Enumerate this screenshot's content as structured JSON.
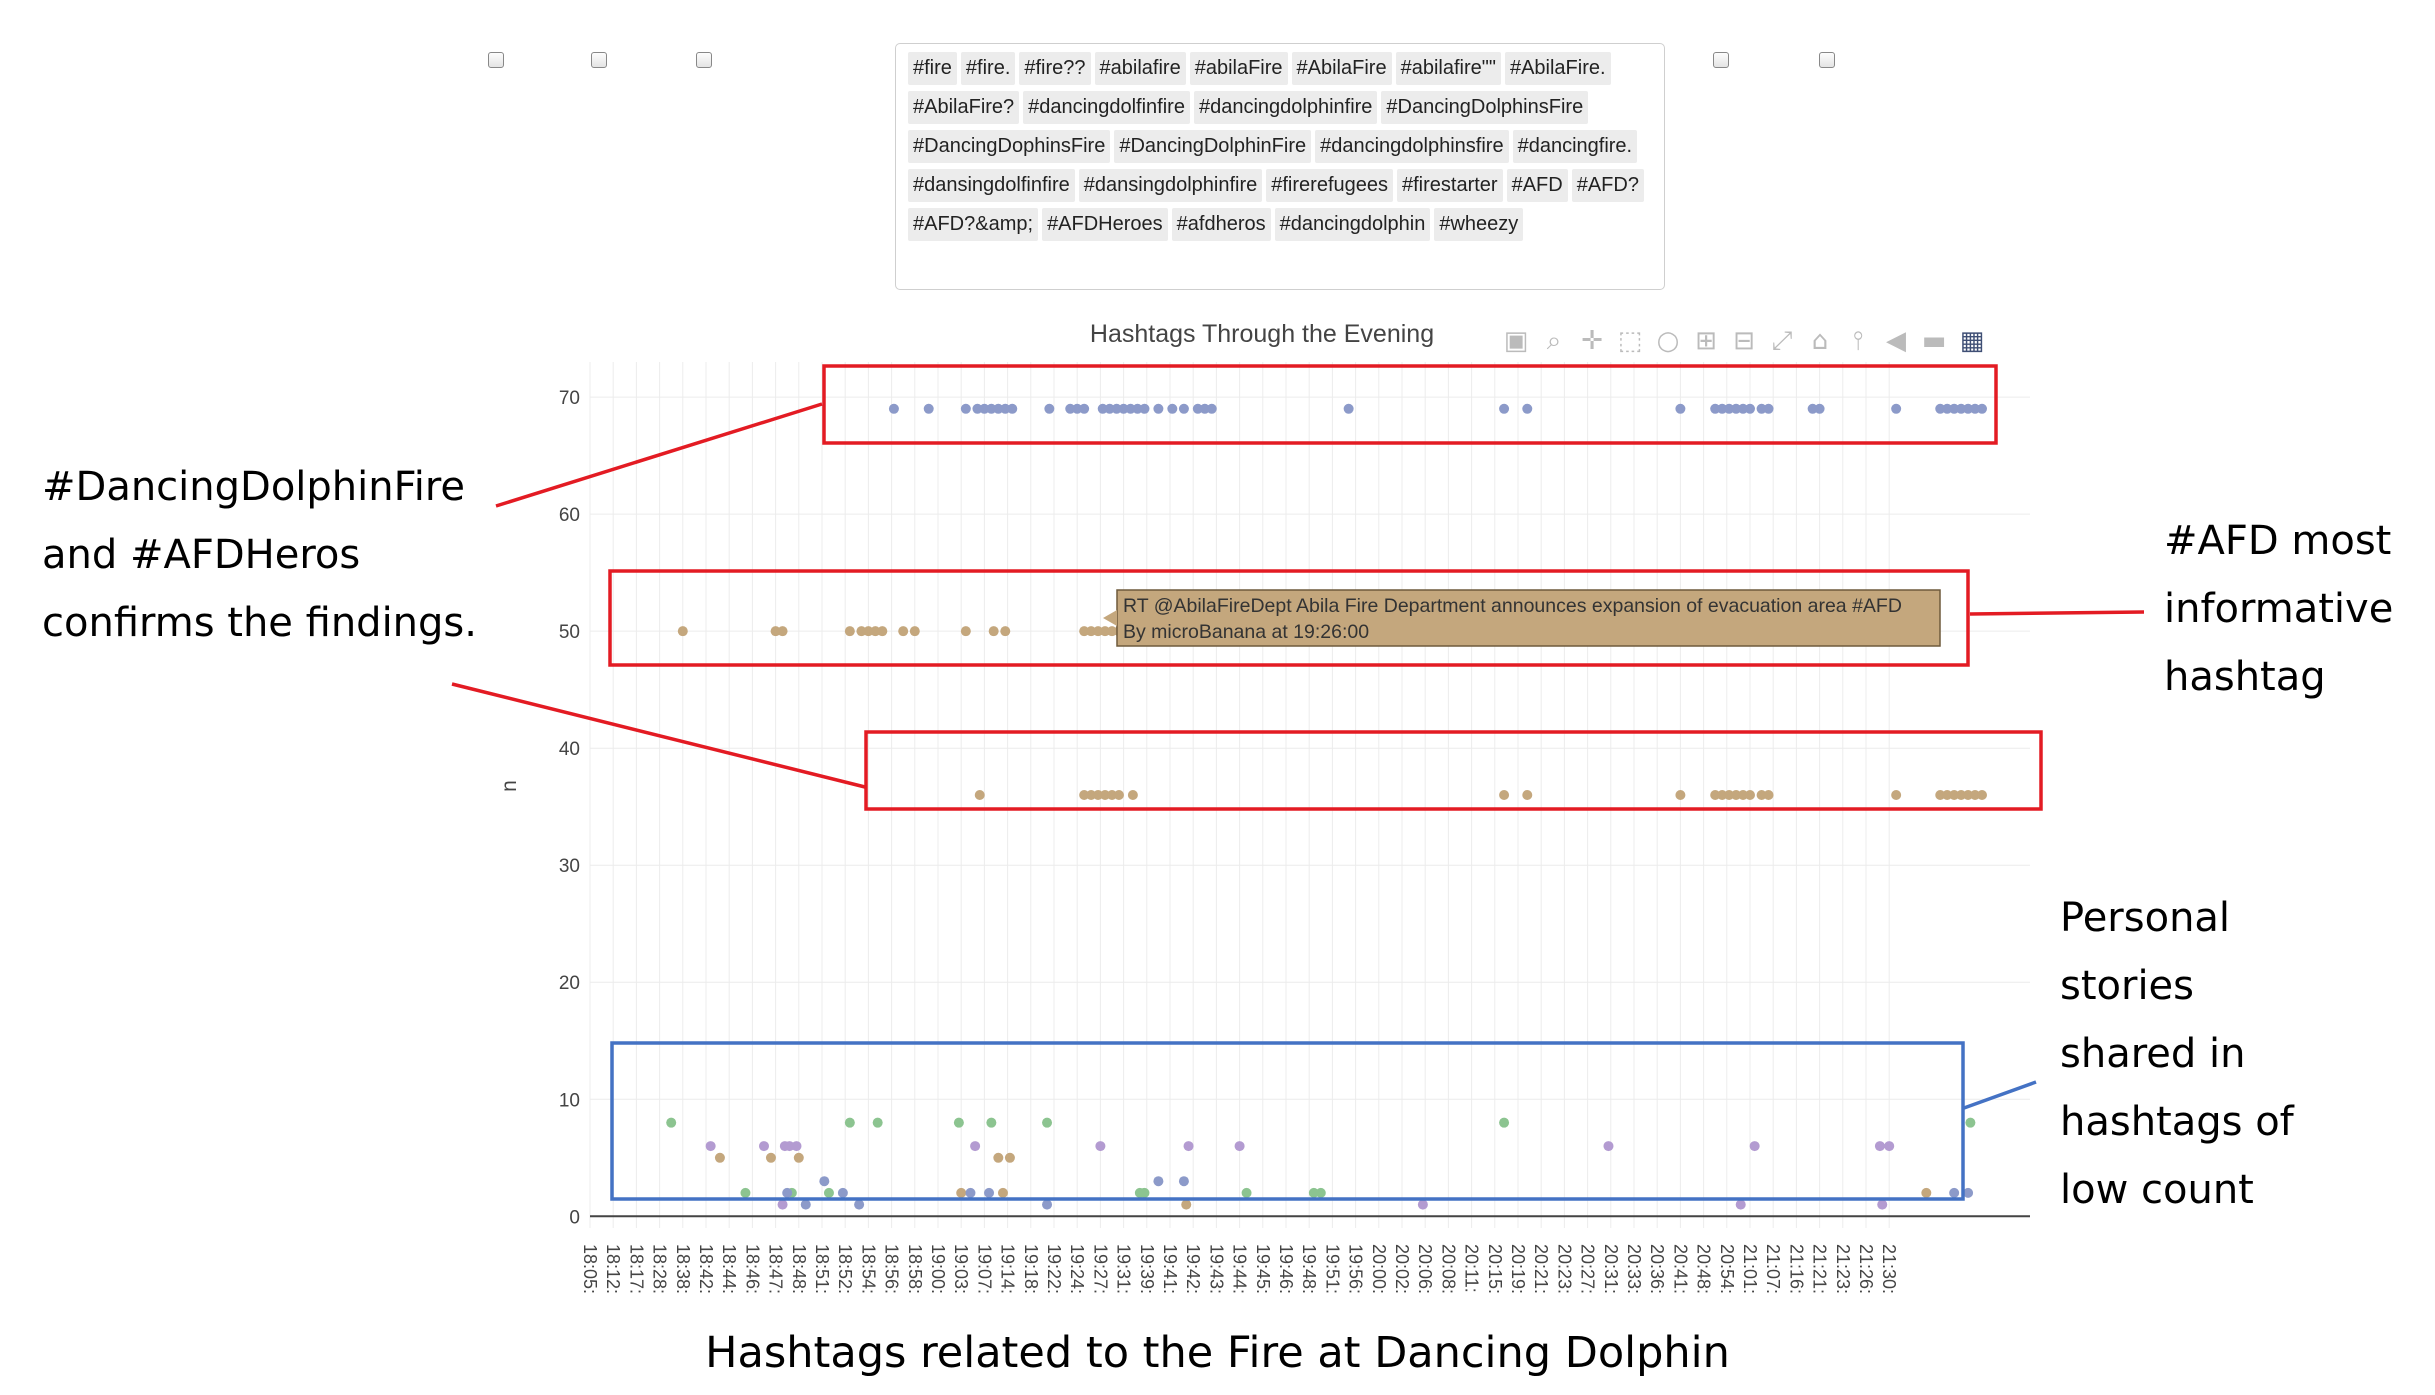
{
  "checkboxes_left_count": 3,
  "checkboxes_right_count": 2,
  "hashtags": [
    "#fire",
    "#fire.",
    "#fire??",
    "#abilafire",
    "#abilaFire",
    "#AbilaFire",
    "#abilafire\"\"",
    "#AbilaFire.",
    "#AbilaFire?",
    "#dancingdolfinfire",
    "#dancingdolphinfire",
    "#DancingDolphinsFire",
    "#DancingDophinsFire",
    "#DancingDolphinFire",
    "#dancingdolphinsfire",
    "#dancingfire.",
    "#dansingdolfinfire",
    "#dansingdolphinfire",
    "#firerefugees",
    "#firestarter",
    "#AFD",
    "#AFD?",
    "#AFD?&amp;",
    "#AFDHeroes",
    "#afdheros",
    "#dancingdolphin",
    "#wheezy"
  ],
  "toolbar_icons": [
    "camera-icon",
    "zoom-icon",
    "pan-icon",
    "box-select-icon",
    "lasso-icon",
    "zoom-in-icon",
    "zoom-out-icon",
    "autoscale-icon",
    "reset-axes-icon",
    "spike-lines-icon",
    "hover-closest-icon",
    "hover-compare-icon",
    "plotly-logo-icon"
  ],
  "colors": {
    "blue": "#8c9ac9",
    "tan": "#c4a77d",
    "green": "#8cc490",
    "purple": "#b39bd1",
    "red_box": "#e31b23",
    "blue_box": "#4472c4"
  },
  "chart_data": {
    "type": "scatter",
    "title": "Hashtags Through the Evening",
    "xlabel": "",
    "ylabel": "n",
    "yticks": [
      0,
      10,
      20,
      30,
      40,
      50,
      60,
      70
    ],
    "ylim": [
      -1,
      73
    ],
    "x_categories": [
      "18:05:",
      "18:12:",
      "18:17:",
      "18:28:",
      "18:38:",
      "18:42:",
      "18:44:",
      "18:46:",
      "18:47:",
      "18:48:",
      "18:51:",
      "18:52:",
      "18:54:",
      "18:56:",
      "18:58:",
      "19:00:",
      "19:03:",
      "19:07:",
      "19:14:",
      "19:18:",
      "19:22:",
      "19:24:",
      "19:27:",
      "19:31:",
      "19:39:",
      "19:41:",
      "19:42:",
      "19:43:",
      "19:44:",
      "19:45:",
      "19:46:",
      "19:48:",
      "19:51:",
      "19:56:",
      "20:00:",
      "20:02:",
      "20:06:",
      "20:08:",
      "20:11:",
      "20:15:",
      "20:19:",
      "20:21:",
      "20:23:",
      "20:27:",
      "20:31:",
      "20:33:",
      "20:36:",
      "20:41:",
      "20:48:",
      "20:54:",
      "21:01:",
      "21:07:",
      "21:16:",
      "21:21:",
      "21:23:",
      "21:26:",
      "21:30:"
    ],
    "grid": true,
    "series": [
      {
        "color": "blue",
        "y": 69,
        "x": [
          13.1,
          14.6,
          16.2,
          16.7,
          17.0,
          17.3,
          17.6,
          17.9,
          18.2,
          19.8,
          20.7,
          21.0,
          21.3,
          22.1,
          22.4,
          22.7,
          23.0,
          23.3,
          23.6,
          23.9,
          24.5,
          25.1,
          25.6,
          26.2,
          26.5,
          26.8,
          32.7,
          39.4,
          40.4,
          47.0,
          48.5,
          48.8,
          49.1,
          49.4,
          49.7,
          50.0,
          50.5,
          50.8,
          52.7,
          53.0,
          56.3,
          58.2,
          58.5,
          58.8,
          59.1,
          59.4,
          59.7,
          60.0
        ]
      },
      {
        "color": "tan",
        "y": 50,
        "x": [
          4.0,
          8.0,
          8.3,
          11.2,
          11.7,
          12.0,
          12.3,
          12.6,
          13.5,
          14.0,
          16.2,
          17.4,
          17.9,
          21.3,
          21.6,
          21.9,
          22.2,
          22.5,
          22.8,
          23.3,
          23.7
        ]
      },
      {
        "color": "tan",
        "y": 36,
        "x": [
          16.8,
          21.3,
          21.6,
          21.9,
          22.2,
          22.5,
          22.8,
          23.4,
          39.4,
          40.4,
          47.0,
          48.5,
          48.8,
          49.1,
          49.4,
          49.7,
          50.0,
          50.5,
          50.8,
          56.3,
          58.2,
          58.5,
          58.8,
          59.1,
          59.4,
          59.7,
          60.0
        ]
      },
      {
        "color": "green",
        "y": 8,
        "x": [
          3.5,
          11.2,
          12.4,
          15.9,
          17.3,
          19.7,
          39.4,
          59.5
        ]
      },
      {
        "color": "green",
        "y": 2,
        "x": [
          6.7,
          8.7,
          10.3,
          23.7,
          23.9,
          28.3,
          31.2,
          31.5
        ]
      },
      {
        "color": "purple",
        "y": 6,
        "x": [
          5.2,
          7.5,
          8.4,
          8.6,
          8.9,
          16.6,
          22.0,
          25.8,
          28.0,
          43.9,
          50.2,
          55.6,
          56.0
        ]
      },
      {
        "color": "purple",
        "y": 1,
        "x": [
          8.3,
          35.9,
          49.6,
          55.7
        ]
      },
      {
        "color": "tan",
        "y": 5,
        "x": [
          5.6,
          7.8,
          9.0,
          17.6,
          18.1
        ]
      },
      {
        "color": "tan",
        "y": 2,
        "x": [
          16.0,
          17.8,
          57.6
        ]
      },
      {
        "color": "tan",
        "y": 1,
        "x": [
          25.7
        ]
      },
      {
        "color": "blue",
        "y": 3,
        "x": [
          10.1,
          24.5,
          25.6
        ]
      },
      {
        "color": "blue",
        "y": 2,
        "x": [
          8.5,
          10.9,
          16.4,
          17.2,
          58.8,
          59.4
        ]
      },
      {
        "color": "blue",
        "y": 1,
        "x": [
          9.3,
          11.6,
          19.7
        ]
      }
    ],
    "tooltip": {
      "line1": "RT @AbilaFireDept Abila Fire Department announces expansion of evacuation area #AFD",
      "line2": "By  microBanana  at  19:26:00"
    }
  },
  "annotations": {
    "left": [
      "#DancingDolphinFire",
      "and #AFDHeros",
      "confirms the findings."
    ],
    "right_top": [
      "#AFD most",
      "informative",
      "hashtag"
    ],
    "right_bottom": [
      "Personal",
      "stories",
      "shared in",
      "hashtags of",
      "low count"
    ]
  },
  "caption": "Hashtags related to the Fire at Dancing Dolphin"
}
